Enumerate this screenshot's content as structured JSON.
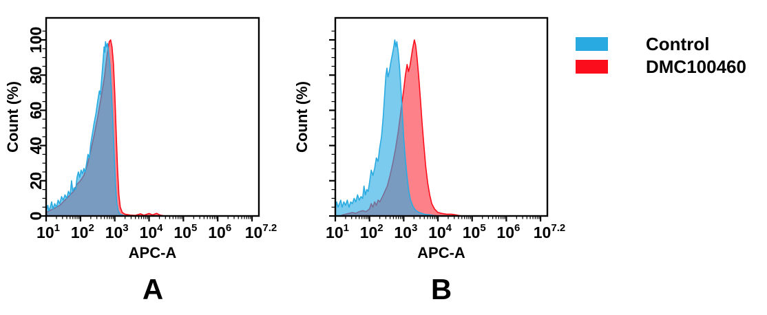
{
  "figure": {
    "background": "#ffffff"
  },
  "legend": {
    "position": "outside-right",
    "items": [
      {
        "label": "Control",
        "color": "#29ABE2"
      },
      {
        "label": "DMC100460",
        "color": "#FB0D1B"
      }
    ]
  },
  "chart_data": [
    {
      "type": "area",
      "panel_label": "A",
      "subtype": "flow-cytometry-histogram-overlay",
      "xlabel": "APC-A",
      "ylabel": "Count (%)",
      "x_scale": "log10",
      "x_range_log10": [
        1,
        7.2
      ],
      "ylim": [
        0,
        100
      ],
      "y_ticks": [
        0,
        20,
        40,
        60,
        80,
        100
      ],
      "x_tick_exponents": [
        "1",
        "2",
        "3",
        "4",
        "5",
        "6",
        "7.2"
      ],
      "grid": false,
      "series": [
        {
          "name": "Control",
          "color": "#29ABE2",
          "fill_opacity": 0.62,
          "points_log10x_y": [
            [
              1.0,
              3
            ],
            [
              1.05,
              6
            ],
            [
              1.08,
              3
            ],
            [
              1.12,
              5
            ],
            [
              1.16,
              8
            ],
            [
              1.2,
              4
            ],
            [
              1.25,
              7
            ],
            [
              1.3,
              5
            ],
            [
              1.35,
              9
            ],
            [
              1.4,
              7
            ],
            [
              1.45,
              11
            ],
            [
              1.5,
              9
            ],
            [
              1.55,
              12
            ],
            [
              1.6,
              10
            ],
            [
              1.65,
              14
            ],
            [
              1.7,
              12
            ],
            [
              1.74,
              20
            ],
            [
              1.78,
              14
            ],
            [
              1.82,
              16
            ],
            [
              1.86,
              15
            ],
            [
              1.9,
              22
            ],
            [
              1.94,
              25
            ],
            [
              1.98,
              22
            ],
            [
              2.02,
              26
            ],
            [
              2.06,
              24
            ],
            [
              2.1,
              27
            ],
            [
              2.14,
              25
            ],
            [
              2.18,
              30
            ],
            [
              2.22,
              35
            ],
            [
              2.26,
              33
            ],
            [
              2.3,
              41
            ],
            [
              2.35,
              47
            ],
            [
              2.4,
              53
            ],
            [
              2.45,
              58
            ],
            [
              2.5,
              65
            ],
            [
              2.55,
              71
            ],
            [
              2.58,
              69
            ],
            [
              2.62,
              78
            ],
            [
              2.66,
              88
            ],
            [
              2.69,
              96
            ],
            [
              2.71,
              93
            ],
            [
              2.73,
              99
            ],
            [
              2.76,
              96
            ],
            [
              2.79,
              98
            ],
            [
              2.82,
              93
            ],
            [
              2.86,
              86
            ],
            [
              2.9,
              72
            ],
            [
              2.94,
              55
            ],
            [
              2.98,
              36
            ],
            [
              3.02,
              18
            ],
            [
              3.06,
              7
            ],
            [
              3.1,
              3
            ],
            [
              3.15,
              1
            ],
            [
              3.25,
              0.3
            ],
            [
              3.4,
              0
            ]
          ]
        },
        {
          "name": "DMC100460",
          "color": "#FB0D1B",
          "fill_opacity": 0.52,
          "points_log10x_y": [
            [
              1.0,
              2
            ],
            [
              1.1,
              3
            ],
            [
              1.2,
              4
            ],
            [
              1.3,
              5
            ],
            [
              1.4,
              6
            ],
            [
              1.5,
              8
            ],
            [
              1.6,
              10
            ],
            [
              1.7,
              12
            ],
            [
              1.8,
              14
            ],
            [
              1.9,
              18
            ],
            [
              2.0,
              20
            ],
            [
              2.1,
              23
            ],
            [
              2.2,
              29
            ],
            [
              2.3,
              37
            ],
            [
              2.4,
              46
            ],
            [
              2.5,
              56
            ],
            [
              2.6,
              67
            ],
            [
              2.7,
              79
            ],
            [
              2.78,
              92
            ],
            [
              2.84,
              99
            ],
            [
              2.88,
              100
            ],
            [
              2.92,
              96
            ],
            [
              2.96,
              87
            ],
            [
              3.0,
              70
            ],
            [
              3.04,
              48
            ],
            [
              3.08,
              27
            ],
            [
              3.12,
              12
            ],
            [
              3.16,
              5
            ],
            [
              3.22,
              2
            ],
            [
              3.3,
              1
            ],
            [
              3.45,
              0.5
            ],
            [
              3.6,
              0.3
            ],
            [
              3.75,
              1.2
            ],
            [
              3.85,
              0.4
            ],
            [
              4.0,
              1.4
            ],
            [
              4.1,
              0.6
            ],
            [
              4.22,
              1.5
            ],
            [
              4.32,
              0.5
            ],
            [
              4.45,
              0
            ]
          ]
        }
      ]
    },
    {
      "type": "area",
      "panel_label": "B",
      "subtype": "flow-cytometry-histogram-overlay",
      "xlabel": "APC-A",
      "ylabel": "Count (%)",
      "x_scale": "log10",
      "x_range_log10": [
        1,
        7.2
      ],
      "ylim": [
        0,
        100
      ],
      "y_ticks": [
        0,
        20,
        40,
        60,
        80,
        100
      ],
      "x_tick_exponents": [
        "1",
        "2",
        "3",
        "4",
        "5",
        "6",
        "7.2"
      ],
      "grid": false,
      "series": [
        {
          "name": "Control",
          "color": "#29ABE2",
          "fill_opacity": 0.62,
          "points_log10x_y": [
            [
              1.0,
              4
            ],
            [
              1.04,
              8
            ],
            [
              1.08,
              5
            ],
            [
              1.12,
              7
            ],
            [
              1.16,
              9
            ],
            [
              1.2,
              5
            ],
            [
              1.25,
              8
            ],
            [
              1.3,
              6
            ],
            [
              1.35,
              9
            ],
            [
              1.4,
              5
            ],
            [
              1.45,
              8
            ],
            [
              1.5,
              7
            ],
            [
              1.55,
              10
            ],
            [
              1.6,
              8
            ],
            [
              1.65,
              12
            ],
            [
              1.7,
              9
            ],
            [
              1.75,
              11
            ],
            [
              1.8,
              10
            ],
            [
              1.84,
              17
            ],
            [
              1.88,
              12
            ],
            [
              1.92,
              15
            ],
            [
              1.96,
              14
            ],
            [
              2.0,
              19
            ],
            [
              2.05,
              26
            ],
            [
              2.1,
              23
            ],
            [
              2.15,
              27
            ],
            [
              2.2,
              33
            ],
            [
              2.25,
              31
            ],
            [
              2.3,
              39
            ],
            [
              2.35,
              45
            ],
            [
              2.4,
              56
            ],
            [
              2.44,
              68
            ],
            [
              2.48,
              80
            ],
            [
              2.51,
              84
            ],
            [
              2.54,
              79
            ],
            [
              2.58,
              82
            ],
            [
              2.62,
              87
            ],
            [
              2.66,
              91
            ],
            [
              2.7,
              95
            ],
            [
              2.74,
              100
            ],
            [
              2.77,
              96
            ],
            [
              2.8,
              99
            ],
            [
              2.84,
              93
            ],
            [
              2.88,
              84
            ],
            [
              2.92,
              72
            ],
            [
              2.96,
              58
            ],
            [
              3.0,
              44
            ],
            [
              3.05,
              32
            ],
            [
              3.1,
              22
            ],
            [
              3.15,
              14
            ],
            [
              3.2,
              9
            ],
            [
              3.28,
              5
            ],
            [
              3.36,
              3
            ],
            [
              3.45,
              2
            ],
            [
              3.6,
              1
            ],
            [
              3.8,
              0.5
            ],
            [
              4.0,
              0
            ]
          ]
        },
        {
          "name": "DMC100460",
          "color": "#FB0D1B",
          "fill_opacity": 0.52,
          "points_log10x_y": [
            [
              1.2,
              0.5
            ],
            [
              1.3,
              1
            ],
            [
              1.4,
              1.5
            ],
            [
              1.5,
              2
            ],
            [
              1.6,
              1.5
            ],
            [
              1.7,
              2.5
            ],
            [
              1.8,
              3
            ],
            [
              1.9,
              2.5
            ],
            [
              2.0,
              4
            ],
            [
              2.05,
              7
            ],
            [
              2.1,
              5
            ],
            [
              2.15,
              8
            ],
            [
              2.2,
              6
            ],
            [
              2.25,
              9
            ],
            [
              2.3,
              8
            ],
            [
              2.38,
              11
            ],
            [
              2.45,
              14
            ],
            [
              2.52,
              17
            ],
            [
              2.6,
              23
            ],
            [
              2.68,
              30
            ],
            [
              2.76,
              38
            ],
            [
              2.84,
              48
            ],
            [
              2.92,
              60
            ],
            [
              3.0,
              72
            ],
            [
              3.05,
              80
            ],
            [
              3.1,
              86
            ],
            [
              3.14,
              82
            ],
            [
              3.18,
              85
            ],
            [
              3.22,
              90
            ],
            [
              3.26,
              95
            ],
            [
              3.31,
              100
            ],
            [
              3.35,
              97
            ],
            [
              3.39,
              90
            ],
            [
              3.44,
              79
            ],
            [
              3.49,
              66
            ],
            [
              3.54,
              52
            ],
            [
              3.59,
              40
            ],
            [
              3.64,
              29
            ],
            [
              3.7,
              19
            ],
            [
              3.76,
              12
            ],
            [
              3.82,
              7
            ],
            [
              3.9,
              4
            ],
            [
              4.0,
              2
            ],
            [
              4.1,
              1.5
            ],
            [
              4.25,
              1
            ],
            [
              4.4,
              1
            ],
            [
              4.55,
              0.5
            ],
            [
              4.7,
              0
            ]
          ]
        }
      ]
    }
  ]
}
